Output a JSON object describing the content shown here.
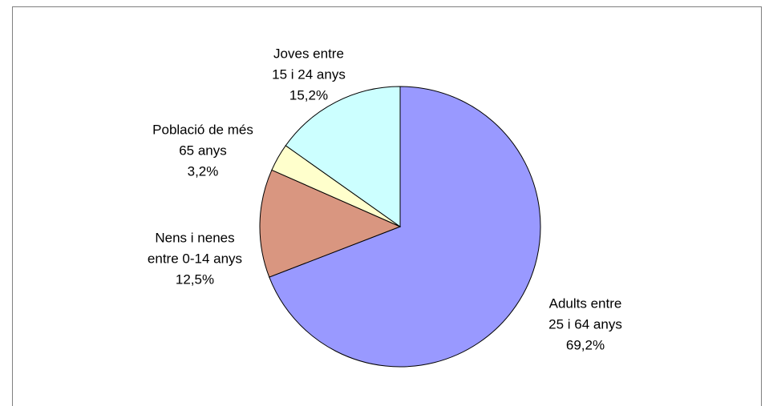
{
  "chart_data": {
    "type": "pie",
    "categories": [
      [
        "Adults entre",
        "25 i 64 anys"
      ],
      [
        "Nens i nenes",
        "entre 0-14 anys"
      ],
      [
        "Població de més",
        "65 anys"
      ],
      [
        "Joves entre",
        "15 i 24 anys"
      ]
    ],
    "values": [
      69.2,
      12.5,
      3.2,
      15.2
    ],
    "value_labels": [
      "69,2%",
      "12,5%",
      "3,2%",
      "15,2%"
    ],
    "colors": [
      "#9999ff",
      "#d99680",
      "#ffffcc",
      "#ccffff"
    ]
  }
}
